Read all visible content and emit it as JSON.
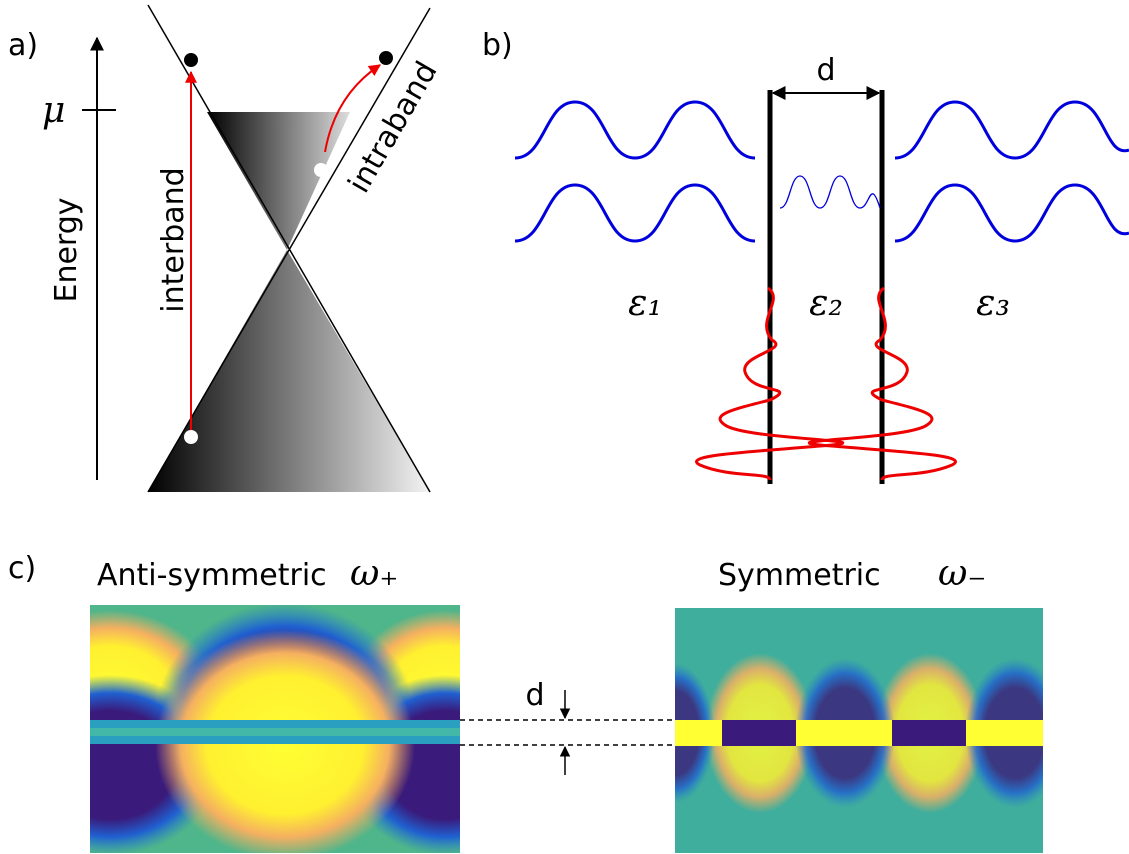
{
  "panel_a": {
    "label": "a)",
    "mu": "μ",
    "axis_label": "Energy",
    "interband": "interband",
    "intraband": "intraband"
  },
  "panel_b": {
    "label": "b)",
    "gap": "d",
    "media": [
      "ε₁",
      "ε₂",
      "ε₃"
    ]
  },
  "panel_c": {
    "label": "c)",
    "gap": "d",
    "modes": [
      {
        "name": "Anti-symmetric",
        "frequency": "ω₊"
      },
      {
        "name": "Symmetric",
        "frequency": "ω₋"
      }
    ]
  }
}
